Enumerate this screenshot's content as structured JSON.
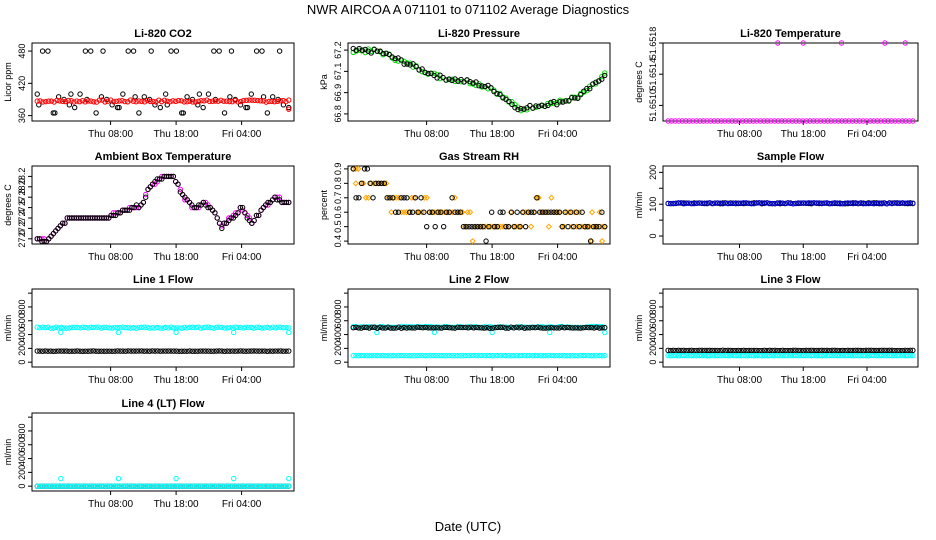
{
  "figure": {
    "title": "NWR   AIRCOA A   071101 to 071102   Average Diagnostics",
    "xlabel": "Date (UTC)",
    "xtick_labels": [
      "Thu 08:00",
      "Thu 18:00",
      "Fri 04:00"
    ]
  },
  "chart_data": [
    {
      "type": "scatter",
      "title": "Li-820 CO2",
      "ylabel": "Licor ppm",
      "xlim": [
        0,
        1
      ],
      "ylim": [
        350,
        495
      ],
      "yticks": [
        360,
        420,
        480
      ],
      "ytick_labels": [
        "360",
        "420",
        "480"
      ],
      "series": [
        {
          "name": "black",
          "color": "#000000",
          "marker": "circle",
          "gen": "co2"
        },
        {
          "name": "red",
          "color": "#ff0000",
          "marker": "circle",
          "gen": "co2red"
        }
      ]
    },
    {
      "type": "scatter",
      "title": "Li-820 Pressure",
      "ylabel": "kPa",
      "xlim": [
        0,
        1
      ],
      "ylim": [
        66.75,
        67.3
      ],
      "yticks": [
        66.8,
        66.95,
        67.1,
        67.25
      ],
      "ytick_labels": [
        "66.8",
        "66.9",
        "67.1",
        "67.2"
      ],
      "series": [
        {
          "name": "green",
          "color": "#00dd00",
          "marker": "circle",
          "gen": "pressure"
        },
        {
          "name": "black",
          "color": "#000000",
          "marker": "circle",
          "gen": "pressure"
        }
      ]
    },
    {
      "type": "scatter",
      "title": "Li-820 Temperature",
      "ylabel": "degrees C",
      "xlim": [
        0,
        1
      ],
      "ylim": [
        51.6508,
        51.6518
      ],
      "yticks": [
        51.651,
        51.6514,
        51.6518
      ],
      "ytick_labels": [
        "51.6510",
        "51.6514",
        "51.6518"
      ],
      "series": [
        {
          "name": "magenta",
          "color": "#ff00ff",
          "marker": "circle",
          "gen": "litemp"
        }
      ]
    },
    {
      "type": "scatter",
      "title": "Ambient Box Temperature",
      "ylabel": "degrees C",
      "xlim": [
        0,
        1
      ],
      "ylim": [
        26.9,
        28.4
      ],
      "yticks": [
        27.0,
        27.2,
        27.4,
        27.6,
        27.8,
        28.0,
        28.2
      ],
      "ytick_labels": [
        "27.0",
        "27.2",
        "27.4",
        "27.6",
        "27.8",
        "28.0",
        "28.2"
      ],
      "series": [
        {
          "name": "magenta",
          "color": "#ff00ff",
          "marker": "circle",
          "gen": "ambient"
        },
        {
          "name": "black",
          "color": "#000000",
          "marker": "circle",
          "gen": "ambient"
        }
      ]
    },
    {
      "type": "scatter",
      "title": "Gas Stream RH",
      "ylabel": "percent",
      "xlim": [
        0,
        1
      ],
      "ylim": [
        0.38,
        0.92
      ],
      "yticks": [
        0.4,
        0.5,
        0.6,
        0.7,
        0.8,
        0.9
      ],
      "ytick_labels": [
        "0.4",
        "0.5",
        "0.6",
        "0.7",
        "0.8",
        "0.9"
      ],
      "series": [
        {
          "name": "orange",
          "color": "#ffa500",
          "marker": "diamond",
          "gen": "rh_o"
        },
        {
          "name": "black",
          "color": "#000000",
          "marker": "circle",
          "gen": "rh_k"
        }
      ]
    },
    {
      "type": "scatter",
      "title": "Sample Flow",
      "ylabel": "ml/min",
      "xlim": [
        0,
        1
      ],
      "ylim": [
        -25,
        220
      ],
      "yticks": [
        0,
        50,
        100,
        150,
        200
      ],
      "ytick_labels": [
        "0",
        "",
        "100",
        "",
        "200"
      ],
      "series": [
        {
          "name": "black",
          "color": "#000000",
          "marker": "circle",
          "gen": "flow",
          "level": 103
        },
        {
          "name": "blue",
          "color": "#0000cc",
          "marker": "circle",
          "gen": "flow",
          "level": 103
        }
      ]
    },
    {
      "type": "scatter",
      "title": "Line 1 Flow",
      "ylabel": "ml/min",
      "xlim": [
        0,
        1
      ],
      "ylim": [
        -70,
        1060
      ],
      "yticks": [
        0,
        200,
        400,
        600,
        800,
        1000
      ],
      "ytick_labels": [
        "0",
        "200",
        "400",
        "600",
        "800",
        ""
      ],
      "series": [
        {
          "name": "cyan",
          "color": "#00ffff",
          "marker": "circle",
          "gen": "flow",
          "level": 500,
          "spike": 430
        },
        {
          "name": "black",
          "color": "#000000",
          "marker": "circle",
          "gen": "flow",
          "level": 160
        }
      ]
    },
    {
      "type": "scatter",
      "title": "Line 2 Flow",
      "ylabel": "ml/min",
      "xlim": [
        0,
        1
      ],
      "ylim": [
        -70,
        1060
      ],
      "yticks": [
        0,
        200,
        400,
        600,
        800,
        1000
      ],
      "ytick_labels": [
        "0",
        "200",
        "400",
        "600",
        "800",
        ""
      ],
      "series": [
        {
          "name": "cyan-upper",
          "color": "#00ffff",
          "marker": "circle",
          "gen": "flow",
          "level": 510,
          "spike": 430
        },
        {
          "name": "black",
          "color": "#000000",
          "marker": "circle",
          "gen": "flow",
          "level": 500
        },
        {
          "name": "cyan-lower",
          "color": "#00ffff",
          "marker": "circle",
          "gen": "flow",
          "level": 95
        }
      ]
    },
    {
      "type": "scatter",
      "title": "Line 3 Flow",
      "ylabel": "ml/min",
      "xlim": [
        0,
        1
      ],
      "ylim": [
        -70,
        1060
      ],
      "yticks": [
        0,
        200,
        400,
        600,
        800,
        1000
      ],
      "ytick_labels": [
        "0",
        "200",
        "400",
        "600",
        "800",
        ""
      ],
      "series": [
        {
          "name": "black",
          "color": "#000000",
          "marker": "circle",
          "gen": "flow",
          "level": 170
        },
        {
          "name": "cyan",
          "color": "#00ffff",
          "marker": "circle",
          "gen": "flow",
          "level": 95
        }
      ]
    },
    {
      "type": "scatter",
      "title": "Line 4 (LT) Flow",
      "ylabel": "ml/min",
      "xlim": [
        0,
        1
      ],
      "ylim": [
        -70,
        1060
      ],
      "yticks": [
        0,
        200,
        400,
        600,
        800,
        1000
      ],
      "ytick_labels": [
        "0",
        "200",
        "400",
        "600",
        "800",
        ""
      ],
      "series": [
        {
          "name": "black",
          "color": "#000000",
          "marker": "circle",
          "gen": "flow",
          "level": 0
        },
        {
          "name": "cyan",
          "color": "#00ffff",
          "marker": "circle",
          "gen": "flow",
          "level": 0,
          "spike": 110
        }
      ]
    }
  ]
}
